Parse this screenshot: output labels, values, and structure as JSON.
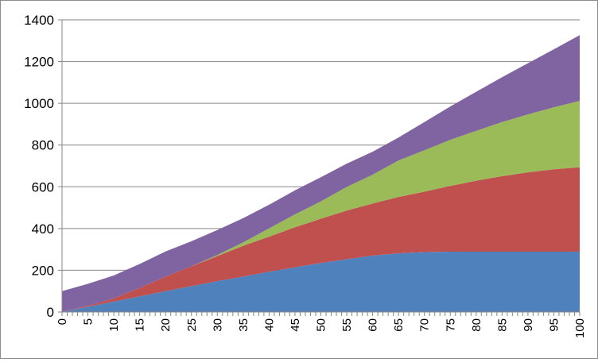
{
  "chart_data": {
    "type": "area",
    "stacked": true,
    "title": "",
    "xlabel": "",
    "ylabel": "",
    "x": [
      0,
      5,
      10,
      15,
      20,
      25,
      30,
      35,
      40,
      45,
      50,
      55,
      60,
      65,
      70,
      75,
      80,
      85,
      90,
      95,
      100
    ],
    "x_tick_step": 1,
    "x_tick_label_step": 5,
    "ylim": [
      0,
      1400
    ],
    "yticks": [
      0,
      200,
      400,
      600,
      800,
      1000,
      1200,
      1400
    ],
    "grid": {
      "horizontal": true,
      "vertical": false
    },
    "legend": "none",
    "series": [
      {
        "color": "#4f81bd",
        "values": [
          0,
          25,
          50,
          75,
          100,
          124,
          148,
          170,
          193,
          214,
          235,
          253,
          270,
          281,
          287,
          289,
          289,
          289,
          289,
          289,
          289
        ]
      },
      {
        "color": "#c0504d",
        "values": [
          0,
          5,
          15,
          40,
          70,
          95,
          120,
          147,
          168,
          192,
          212,
          233,
          250,
          270,
          290,
          315,
          340,
          362,
          380,
          395,
          405
        ]
      },
      {
        "color": "#9bbb59",
        "values": [
          0,
          0,
          0,
          0,
          0,
          0,
          5,
          17,
          40,
          62,
          83,
          113,
          138,
          175,
          198,
          221,
          239,
          259,
          278,
          297,
          318
        ]
      },
      {
        "color": "#8064a2",
        "values": [
          100,
          105,
          110,
          115,
          120,
          120,
          120,
          116,
          113,
          115,
          116,
          112,
          110,
          110,
          135,
          160,
          187,
          215,
          245,
          278,
          315
        ]
      }
    ]
  }
}
